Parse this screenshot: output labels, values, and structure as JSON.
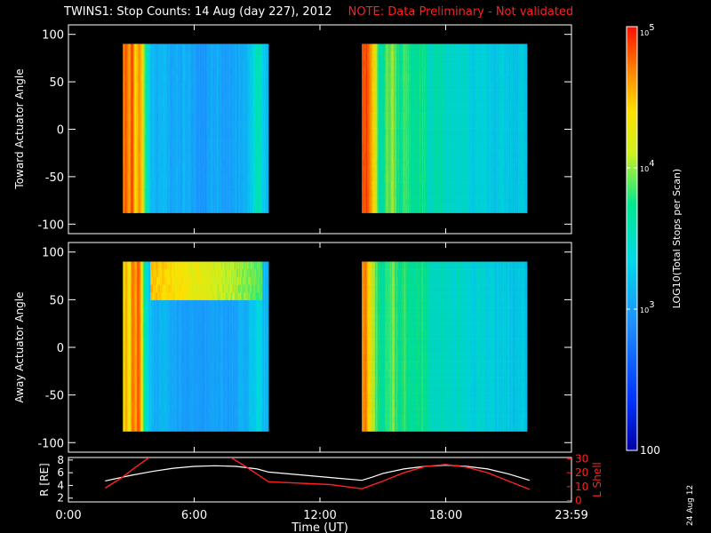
{
  "title": {
    "main": "TWINS1: Stop Counts: 14 Aug (day 227), 2012",
    "note": "NOTE: Data Preliminary - Not validated"
  },
  "stamp": "24 Aug 12",
  "colors": {
    "background": "#000000",
    "axes": "#ffffff",
    "note": "#ff2020",
    "r_line": "#ffffff",
    "lshell_line": "#ff2020"
  },
  "colorbar": {
    "label": "LOG10(Total Stops per Scan)",
    "scale": "log",
    "range": [
      100,
      100000
    ],
    "tick_labels": [
      "100",
      "10^3",
      "10^4",
      "10^5"
    ],
    "tick_values": [
      100,
      1000,
      10000,
      100000
    ],
    "colormap": "rainbow (blue low, red high)"
  },
  "chart_data": [
    {
      "type": "heatmap",
      "panel": "toward",
      "title": "",
      "xlabel": "",
      "ylabel": "Toward Actuator Angle",
      "xlim": [
        0,
        24
      ],
      "ylim": [
        -110,
        110
      ],
      "y_ticks": [
        "100",
        "50",
        "0",
        "-50",
        "-100"
      ],
      "y_tick_values": [
        100,
        50,
        0,
        -50,
        -100
      ],
      "y_data_range": [
        -88,
        90
      ],
      "grid": false,
      "data_intervals": [
        {
          "start_hr": 2.6,
          "end_hr": 9.55,
          "intensity_by_time": [
            [
              2.6,
              4.6
            ],
            [
              2.75,
              4.85
            ],
            [
              2.9,
              4.6
            ],
            [
              3.05,
              4.9
            ],
            [
              3.2,
              4.3
            ],
            [
              3.35,
              4.7
            ],
            [
              3.5,
              4.5
            ],
            [
              3.6,
              4.0
            ],
            [
              3.75,
              3.5
            ],
            [
              3.9,
              3.2
            ],
            [
              4.2,
              3.1
            ],
            [
              4.6,
              3.15
            ],
            [
              5.0,
              3.05
            ],
            [
              5.5,
              3.1
            ],
            [
              6.0,
              3.0
            ],
            [
              6.5,
              2.95
            ],
            [
              7.0,
              3.05
            ],
            [
              7.5,
              3.0
            ],
            [
              8.0,
              3.05
            ],
            [
              8.5,
              3.15
            ],
            [
              8.8,
              3.35
            ],
            [
              9.1,
              3.6
            ],
            [
              9.3,
              3.3
            ],
            [
              9.55,
              3.1
            ]
          ]
        },
        {
          "start_hr": 14.0,
          "end_hr": 21.9,
          "intensity_by_time": [
            [
              14.0,
              4.8
            ],
            [
              14.2,
              4.9
            ],
            [
              14.4,
              4.6
            ],
            [
              14.6,
              4.3
            ],
            [
              14.9,
              3.6
            ],
            [
              15.2,
              3.9
            ],
            [
              15.5,
              4.0
            ],
            [
              15.8,
              3.7
            ],
            [
              16.1,
              3.9
            ],
            [
              16.5,
              3.6
            ],
            [
              16.9,
              3.8
            ],
            [
              17.3,
              3.5
            ],
            [
              17.8,
              3.6
            ],
            [
              18.3,
              3.4
            ],
            [
              18.8,
              3.5
            ],
            [
              19.3,
              3.35
            ],
            [
              19.8,
              3.4
            ],
            [
              20.3,
              3.3
            ],
            [
              20.8,
              3.35
            ],
            [
              21.3,
              3.2
            ],
            [
              21.6,
              3.4
            ],
            [
              21.9,
              3.2
            ]
          ]
        }
      ]
    },
    {
      "type": "heatmap",
      "panel": "away",
      "title": "",
      "xlabel": "",
      "ylabel": "Away Actuator Angle",
      "xlim": [
        0,
        24
      ],
      "ylim": [
        -110,
        110
      ],
      "y_ticks": [
        "100",
        "50",
        "0",
        "-50",
        "-100"
      ],
      "y_tick_values": [
        100,
        50,
        0,
        -50,
        -100
      ],
      "y_data_range": [
        -88,
        90
      ],
      "grid": false,
      "data_intervals": [
        {
          "start_hr": 2.6,
          "end_hr": 9.55,
          "intensity_by_time": [
            [
              2.6,
              4.3
            ],
            [
              2.75,
              4.6
            ],
            [
              2.9,
              4.2
            ],
            [
              3.05,
              4.8
            ],
            [
              3.2,
              4.5
            ],
            [
              3.35,
              4.9
            ],
            [
              3.5,
              4.4
            ],
            [
              3.6,
              3.7
            ],
            [
              3.75,
              3.4
            ],
            [
              3.9,
              3.2
            ],
            [
              4.2,
              3.1
            ],
            [
              4.6,
              3.15
            ],
            [
              5.0,
              3.05
            ],
            [
              5.5,
              3.0
            ],
            [
              6.0,
              3.0
            ],
            [
              6.5,
              2.95
            ],
            [
              7.0,
              3.05
            ],
            [
              7.5,
              3.0
            ],
            [
              8.0,
              3.05
            ],
            [
              8.5,
              3.1
            ],
            [
              8.8,
              3.25
            ],
            [
              9.1,
              3.4
            ],
            [
              9.3,
              3.2
            ],
            [
              9.55,
              3.1
            ]
          ],
          "high_band": {
            "angle_from": 50,
            "angle_to": 90,
            "intensity": 4.5
          }
        },
        {
          "start_hr": 14.0,
          "end_hr": 21.9,
          "intensity_by_time": [
            [
              14.0,
              4.6
            ],
            [
              14.2,
              4.7
            ],
            [
              14.4,
              4.3
            ],
            [
              14.6,
              4.0
            ],
            [
              14.9,
              3.6
            ],
            [
              15.2,
              3.8
            ],
            [
              15.5,
              3.95
            ],
            [
              15.8,
              3.7
            ],
            [
              16.1,
              3.8
            ],
            [
              16.5,
              3.65
            ],
            [
              16.9,
              3.75
            ],
            [
              17.3,
              3.5
            ],
            [
              17.8,
              3.55
            ],
            [
              18.3,
              3.45
            ],
            [
              18.8,
              3.5
            ],
            [
              19.3,
              3.35
            ],
            [
              19.8,
              3.4
            ],
            [
              20.3,
              3.3
            ],
            [
              20.8,
              3.35
            ],
            [
              21.3,
              3.25
            ],
            [
              21.6,
              3.35
            ],
            [
              21.9,
              3.2
            ]
          ]
        }
      ]
    },
    {
      "type": "line",
      "panel": "orbit",
      "title": "",
      "xlabel": "Time (UT)",
      "x_ticks": [
        "0:00",
        "6:00",
        "12:00",
        "18:00",
        "23:59"
      ],
      "x_tick_values": [
        0,
        6,
        12,
        18,
        24
      ],
      "xlim": [
        0,
        24
      ],
      "y_left_label": "R [RE]",
      "y_left_ticks": [
        "8",
        "6",
        "4",
        "2"
      ],
      "y_left_tick_values": [
        8,
        6,
        4,
        2
      ],
      "y_left_lim": [
        1.4,
        8.4
      ],
      "y_right_label": "L Shell",
      "y_right_ticks": [
        "30",
        "20",
        "10",
        "0"
      ],
      "y_right_tick_values": [
        30,
        20,
        10,
        0
      ],
      "y_right_lim": [
        -1,
        31
      ],
      "grid": false,
      "series": [
        {
          "name": "R [RE]",
          "axis": "left",
          "color": "#ffffff",
          "x": [
            1.75,
            3,
            4,
            5,
            6,
            7,
            8,
            9,
            9.55,
            14,
            14.5,
            15,
            16,
            17,
            18,
            19,
            20,
            21,
            22
          ],
          "y": [
            4.7,
            5.6,
            6.2,
            6.7,
            7.0,
            7.1,
            7.0,
            6.6,
            6.1,
            4.8,
            5.3,
            5.9,
            6.6,
            7.0,
            7.2,
            7.0,
            6.6,
            5.8,
            4.8
          ]
        },
        {
          "name": "L Shell",
          "axis": "right",
          "color": "#ff2020",
          "segments": [
            {
              "x": [
                1.75,
                2.5,
                3.2,
                3.85
              ],
              "y": [
                9,
                16,
                24,
                31
              ]
            },
            {
              "x": [
                7.75,
                8.5,
                9.2,
                9.55,
                12.5,
                14.0
              ],
              "y": [
                31,
                24,
                17,
                13.5,
                11.5,
                8.5
              ]
            },
            {
              "x": [
                14.0,
                15,
                16,
                17,
                18,
                19,
                20,
                21,
                22
              ],
              "y": [
                8.5,
                14,
                20,
                24.5,
                26,
                24,
                20,
                14,
                8
              ]
            }
          ]
        }
      ]
    }
  ]
}
